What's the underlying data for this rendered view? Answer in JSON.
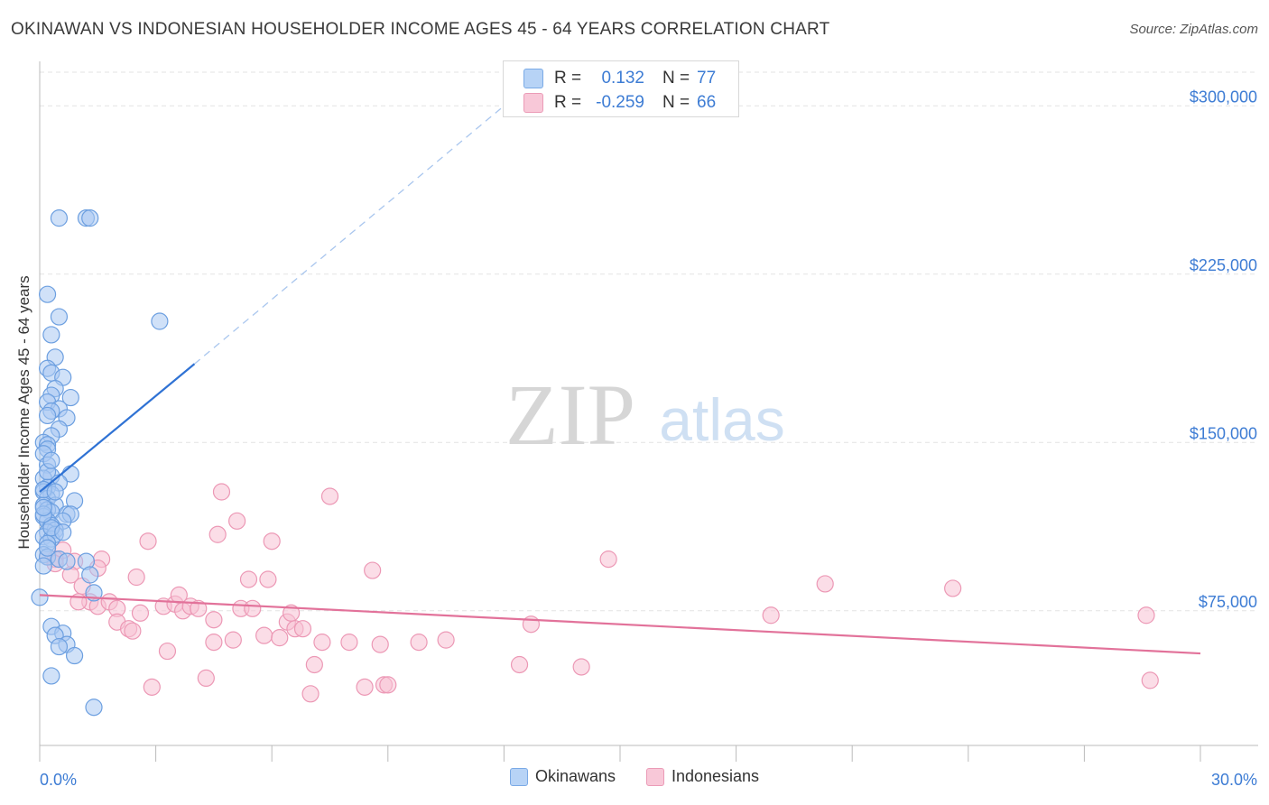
{
  "title": "OKINAWAN VS INDONESIAN HOUSEHOLDER INCOME AGES 45 - 64 YEARS CORRELATION CHART",
  "source": "Source: ZipAtlas.com",
  "watermark": {
    "zip": "ZIP",
    "atlas": "atlas"
  },
  "colors": {
    "blue_fill": "#a9c9f3",
    "blue_stroke": "#6c9fe0",
    "blue_line": "#2f72d4",
    "pink_fill": "#f7c1d3",
    "pink_stroke": "#ec98b5",
    "pink_line": "#e2729a",
    "axis_text": "#3d7cd4",
    "grid": "#e3e3e3"
  },
  "stats": {
    "blue": {
      "r_label": "R =",
      "r_value": "0.132",
      "n_label": "N =",
      "n_value": "77"
    },
    "pink": {
      "r_label": "R =",
      "r_value": "-0.259",
      "n_label": "N =",
      "n_value": "66"
    }
  },
  "legend": {
    "blue": "Okinawans",
    "pink": "Indonesians"
  },
  "chart_data": {
    "type": "scatter",
    "title": "OKINAWAN VS INDONESIAN HOUSEHOLDER INCOME AGES 45 - 64 YEARS CORRELATION CHART",
    "xlabel": "",
    "ylabel": "Householder Income Ages 45 - 64 years",
    "xlim": [
      0,
      30
    ],
    "ylim": [
      15000,
      315000
    ],
    "x_tick_labels": [
      "0.0%",
      "30.0%"
    ],
    "y_ticks": [
      75000,
      150000,
      225000,
      300000
    ],
    "y_tick_labels": [
      "$75,000",
      "$150,000",
      "$225,000",
      "$300,000"
    ],
    "grid": true,
    "legend_position": "bottom-center",
    "series": [
      {
        "name": "Okinawans",
        "trend": {
          "x": [
            0.0,
            4.0
          ],
          "y": [
            128000,
            185000
          ],
          "extended_to": [
            12.0,
            300000
          ]
        },
        "points": [
          [
            0.5,
            250000
          ],
          [
            1.2,
            250000
          ],
          [
            1.3,
            250000
          ],
          [
            0.2,
            216000
          ],
          [
            0.5,
            206000
          ],
          [
            3.1,
            204000
          ],
          [
            0.3,
            198000
          ],
          [
            0.4,
            188000
          ],
          [
            0.2,
            183000
          ],
          [
            0.3,
            181000
          ],
          [
            0.6,
            179000
          ],
          [
            0.4,
            174000
          ],
          [
            0.3,
            171000
          ],
          [
            0.8,
            170000
          ],
          [
            0.2,
            168000
          ],
          [
            0.5,
            165000
          ],
          [
            0.3,
            164000
          ],
          [
            0.7,
            161000
          ],
          [
            0.2,
            162000
          ],
          [
            0.5,
            156000
          ],
          [
            0.3,
            153000
          ],
          [
            0.1,
            150000
          ],
          [
            0.2,
            149000
          ],
          [
            0.2,
            147000
          ],
          [
            0.1,
            145000
          ],
          [
            0.2,
            140000
          ],
          [
            0.8,
            136000
          ],
          [
            0.3,
            135000
          ],
          [
            0.1,
            134000
          ],
          [
            0.5,
            132000
          ],
          [
            0.2,
            130000
          ],
          [
            0.1,
            128000
          ],
          [
            0.3,
            127000
          ],
          [
            0.2,
            125000
          ],
          [
            0.9,
            124000
          ],
          [
            0.1,
            122000
          ],
          [
            0.4,
            122000
          ],
          [
            0.2,
            120000
          ],
          [
            0.3,
            119000
          ],
          [
            0.7,
            118000
          ],
          [
            0.8,
            118000
          ],
          [
            0.1,
            117000
          ],
          [
            0.2,
            115000
          ],
          [
            0.6,
            115000
          ],
          [
            0.3,
            113000
          ],
          [
            0.4,
            111000
          ],
          [
            0.2,
            110000
          ],
          [
            0.1,
            108000
          ],
          [
            0.3,
            107000
          ],
          [
            0.4,
            109000
          ],
          [
            0.2,
            105000
          ],
          [
            0.1,
            100000
          ],
          [
            0.2,
            99000
          ],
          [
            0.5,
            98000
          ],
          [
            0.7,
            97000
          ],
          [
            1.2,
            97000
          ],
          [
            0.1,
            95000
          ],
          [
            1.3,
            91000
          ],
          [
            1.4,
            83000
          ],
          [
            0.0,
            81000
          ],
          [
            0.3,
            68000
          ],
          [
            0.6,
            65000
          ],
          [
            0.4,
            64000
          ],
          [
            0.7,
            60000
          ],
          [
            0.5,
            59000
          ],
          [
            0.9,
            55000
          ],
          [
            0.3,
            46000
          ],
          [
            1.4,
            32000
          ],
          [
            0.1,
            129000
          ],
          [
            0.2,
            137000
          ],
          [
            0.3,
            112000
          ],
          [
            0.1,
            118000
          ],
          [
            0.2,
            103000
          ],
          [
            0.4,
            128000
          ],
          [
            0.1,
            121000
          ],
          [
            0.6,
            110000
          ],
          [
            0.3,
            142000
          ]
        ]
      },
      {
        "name": "Indonesians",
        "trend": {
          "x": [
            0.0,
            30.0
          ],
          "y": [
            82000,
            56000
          ]
        },
        "points": [
          [
            0.6,
            102000
          ],
          [
            0.2,
            99000
          ],
          [
            0.4,
            98000
          ],
          [
            0.4,
            96000
          ],
          [
            0.9,
            97000
          ],
          [
            0.8,
            91000
          ],
          [
            1.6,
            98000
          ],
          [
            1.5,
            94000
          ],
          [
            2.5,
            90000
          ],
          [
            1.1,
            86000
          ],
          [
            1.3,
            79000
          ],
          [
            1.0,
            79000
          ],
          [
            1.5,
            77000
          ],
          [
            1.8,
            79000
          ],
          [
            2.0,
            76000
          ],
          [
            2.6,
            74000
          ],
          [
            2.0,
            70000
          ],
          [
            2.3,
            67000
          ],
          [
            2.4,
            66000
          ],
          [
            2.8,
            106000
          ],
          [
            3.3,
            57000
          ],
          [
            2.9,
            41000
          ],
          [
            3.2,
            77000
          ],
          [
            3.5,
            78000
          ],
          [
            3.6,
            82000
          ],
          [
            3.7,
            75000
          ],
          [
            3.9,
            77000
          ],
          [
            4.1,
            76000
          ],
          [
            4.3,
            45000
          ],
          [
            4.5,
            61000
          ],
          [
            4.5,
            71000
          ],
          [
            4.6,
            109000
          ],
          [
            4.7,
            128000
          ],
          [
            5.0,
            62000
          ],
          [
            5.1,
            115000
          ],
          [
            5.4,
            89000
          ],
          [
            5.2,
            76000
          ],
          [
            5.5,
            76000
          ],
          [
            5.8,
            64000
          ],
          [
            5.9,
            89000
          ],
          [
            6.0,
            106000
          ],
          [
            6.2,
            63000
          ],
          [
            6.4,
            70000
          ],
          [
            6.5,
            74000
          ],
          [
            6.6,
            67000
          ],
          [
            6.8,
            67000
          ],
          [
            7.1,
            51000
          ],
          [
            7.0,
            38000
          ],
          [
            7.3,
            61000
          ],
          [
            7.5,
            126000
          ],
          [
            8.0,
            61000
          ],
          [
            8.4,
            41000
          ],
          [
            8.6,
            93000
          ],
          [
            8.8,
            60000
          ],
          [
            8.9,
            42000
          ],
          [
            9.0,
            42000
          ],
          [
            9.8,
            61000
          ],
          [
            10.5,
            62000
          ],
          [
            12.4,
            51000
          ],
          [
            12.7,
            69000
          ],
          [
            14.0,
            50000
          ],
          [
            14.7,
            98000
          ],
          [
            18.9,
            73000
          ],
          [
            20.3,
            87000
          ],
          [
            23.6,
            85000
          ],
          [
            28.6,
            73000
          ]
        ],
        "extra_points": [
          [
            28.7,
            44000
          ]
        ]
      }
    ]
  }
}
